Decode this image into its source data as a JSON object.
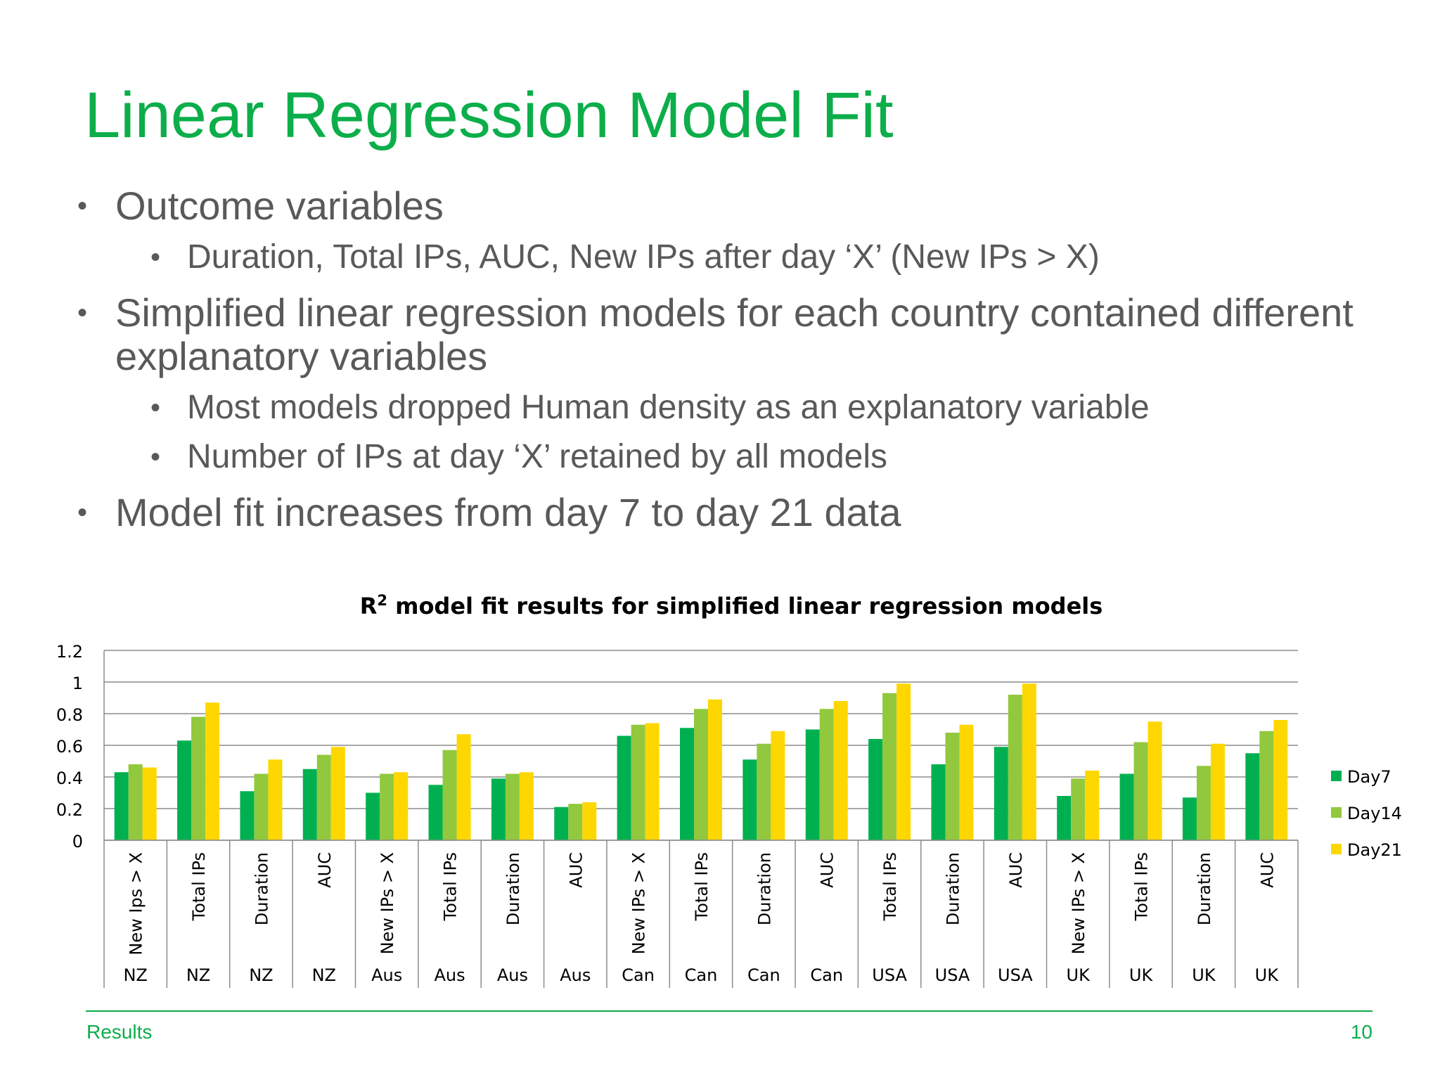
{
  "slide": {
    "title": "Linear Regression Model Fit",
    "bullets": [
      {
        "text": "Outcome variables",
        "sub": [
          "Duration, Total IPs, AUC, New IPs after day ‘X’ (New IPs > X)"
        ]
      },
      {
        "text": "Simplified linear regression models for each country contained different explanatory variables",
        "sub": [
          "Most models dropped Human density as an explanatory variable",
          "Number of IPs at day ‘X’ retained by all models"
        ]
      },
      {
        "text": "Model fit increases from day 7 to day 21 data",
        "sub": []
      }
    ],
    "footer_left": "Results",
    "page_number": "10"
  },
  "chart_data": {
    "type": "bar",
    "title_main": "R",
    "title_sup": "2",
    "title_rest": " model fit results for simplified linear regression models",
    "categories": [
      {
        "metric": "New Ips > X",
        "country": "NZ"
      },
      {
        "metric": "Total IPs",
        "country": "NZ"
      },
      {
        "metric": "Duration",
        "country": "NZ"
      },
      {
        "metric": "AUC",
        "country": "NZ"
      },
      {
        "metric": "New IPs > X",
        "country": "Aus"
      },
      {
        "metric": "Total IPs",
        "country": "Aus"
      },
      {
        "metric": "Duration",
        "country": "Aus"
      },
      {
        "metric": "AUC",
        "country": "Aus"
      },
      {
        "metric": "New IPs > X",
        "country": "Can"
      },
      {
        "metric": "Total IPs",
        "country": "Can"
      },
      {
        "metric": "Duration",
        "country": "Can"
      },
      {
        "metric": "AUC",
        "country": "Can"
      },
      {
        "metric": "Total IPs",
        "country": "USA"
      },
      {
        "metric": "Duration",
        "country": "USA"
      },
      {
        "metric": "AUC",
        "country": "USA"
      },
      {
        "metric": "New IPs > X",
        "country": "UK"
      },
      {
        "metric": "Total IPs",
        "country": "UK"
      },
      {
        "metric": "Duration",
        "country": "UK"
      },
      {
        "metric": "AUC",
        "country": "UK"
      }
    ],
    "series": [
      {
        "name": "Day7",
        "color": "#00b050",
        "values": [
          0.43,
          0.63,
          0.31,
          0.45,
          0.3,
          0.35,
          0.39,
          0.21,
          0.66,
          0.71,
          0.51,
          0.7,
          0.64,
          0.48,
          0.59,
          0.28,
          0.42,
          0.27,
          0.55
        ]
      },
      {
        "name": "Day14",
        "color": "#92c83e",
        "values": [
          0.48,
          0.78,
          0.42,
          0.54,
          0.42,
          0.57,
          0.42,
          0.23,
          0.73,
          0.83,
          0.61,
          0.83,
          0.93,
          0.68,
          0.92,
          0.39,
          0.62,
          0.47,
          0.69
        ]
      },
      {
        "name": "Day21",
        "color": "#ffd700",
        "values": [
          0.46,
          0.87,
          0.51,
          0.59,
          0.43,
          0.67,
          0.43,
          0.24,
          0.74,
          0.89,
          0.69,
          0.88,
          0.99,
          0.73,
          0.99,
          0.44,
          0.75,
          0.61,
          0.76
        ]
      }
    ],
    "yticks": [
      "1.2",
      "1",
      "0.8",
      "0.6",
      "0.4",
      "0.2",
      "0"
    ],
    "ylim": [
      0,
      1.2
    ],
    "grid": true,
    "legend_position": "right"
  }
}
